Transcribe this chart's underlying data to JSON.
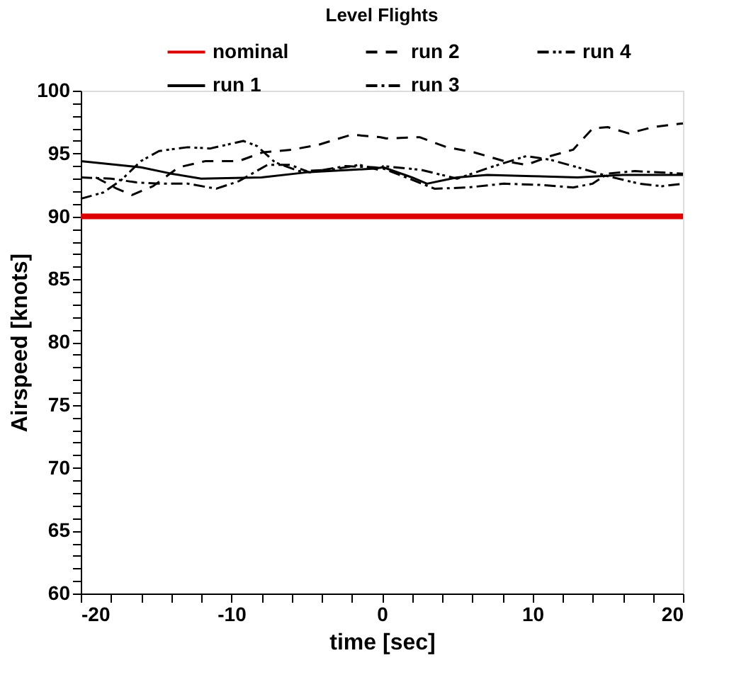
{
  "chart_data": {
    "type": "line",
    "title": "Level Flights",
    "xlabel": "time [sec]",
    "ylabel": "Airspeed [knots]",
    "xlim": [
      -20,
      20
    ],
    "ylim": [
      60,
      100
    ],
    "xticks": [
      -20,
      {
        "value": -18,
        "label": null
      },
      {
        "value": -16,
        "label": null
      },
      {
        "value": -14,
        "label": null
      },
      {
        "value": -12,
        "label": null
      },
      -10,
      {
        "value": -8,
        "label": null
      },
      {
        "value": -6,
        "label": null
      },
      {
        "value": -4,
        "label": null
      },
      {
        "value": -2,
        "label": null
      },
      0,
      {
        "value": 2,
        "label": null
      },
      {
        "value": 4,
        "label": null
      },
      {
        "value": 6,
        "label": null
      },
      {
        "value": 8,
        "label": null
      },
      10,
      {
        "value": 12,
        "label": null
      },
      {
        "value": 14,
        "label": null
      },
      {
        "value": 16,
        "label": null
      },
      {
        "value": 18,
        "label": null
      },
      20
    ],
    "yticks": [
      60,
      {
        "value": 61,
        "label": null
      },
      {
        "value": 62,
        "label": null
      },
      {
        "value": 63,
        "label": null
      },
      {
        "value": 64,
        "label": null
      },
      65,
      {
        "value": 66,
        "label": null
      },
      {
        "value": 67,
        "label": null
      },
      {
        "value": 68,
        "label": null
      },
      {
        "value": 69,
        "label": null
      },
      70,
      {
        "value": 71,
        "label": null
      },
      {
        "value": 72,
        "label": null
      },
      {
        "value": 73,
        "label": null
      },
      {
        "value": 74,
        "label": null
      },
      75,
      {
        "value": 76,
        "label": null
      },
      {
        "value": 77,
        "label": null
      },
      {
        "value": 78,
        "label": null
      },
      {
        "value": 79,
        "label": null
      },
      80,
      {
        "value": 81,
        "label": null
      },
      {
        "value": 82,
        "label": null
      },
      {
        "value": 83,
        "label": null
      },
      {
        "value": 84,
        "label": null
      },
      85,
      {
        "value": 86,
        "label": null
      },
      {
        "value": 87,
        "label": null
      },
      {
        "value": 88,
        "label": null
      },
      {
        "value": 89,
        "label": null
      },
      90,
      {
        "value": 91,
        "label": null
      },
      {
        "value": 92,
        "label": null
      },
      {
        "value": 93,
        "label": null
      },
      {
        "value": 94,
        "label": null
      },
      95,
      {
        "value": 96,
        "label": null
      },
      {
        "value": 97,
        "label": null
      },
      {
        "value": 98,
        "label": null
      },
      {
        "value": 99,
        "label": null
      },
      100
    ],
    "grid": false,
    "legend": "top",
    "marker": "none",
    "series": [
      {
        "name": "nominal",
        "color": "#dd0000",
        "line_style": "solid",
        "x": [
          -20,
          20
        ],
        "values": [
          90,
          90
        ]
      },
      {
        "name": "run 2",
        "color": "#000000",
        "line_style": "dashed",
        "x": [
          -19,
          -17.6,
          -16.6,
          -15.2,
          -13.5,
          -11.7,
          -9.5,
          -7.9,
          -6,
          -4.2,
          -2,
          -0.1,
          0.3,
          2.5,
          4.3,
          6.1,
          8.1,
          9.6,
          11.2,
          12.7,
          14,
          15,
          16.4,
          18,
          20
        ],
        "values": [
          93.1,
          92.2,
          91.7,
          92.4,
          93.9,
          94.4,
          94.4,
          95.1,
          95.3,
          95.7,
          96.5,
          96.3,
          96.2,
          96.3,
          95.5,
          95.1,
          94.4,
          94.1,
          94.8,
          95.3,
          97.0,
          97.1,
          96.6,
          97.1,
          97.4
        ]
      },
      {
        "name": "run 4",
        "color": "#000000",
        "line_style": "dashdotdot",
        "x": [
          -20,
          -18.5,
          -17.3,
          -16,
          -14.8,
          -12.9,
          -11.4,
          -9.2,
          -8.3,
          -7.1,
          -5.5,
          -3.4,
          -1.5,
          -0.2,
          0.1,
          2.6,
          5,
          7.2,
          9.6,
          11.2,
          13,
          15,
          17.1,
          18.6,
          20
        ],
        "values": [
          91.4,
          91.9,
          92.9,
          94.4,
          95.2,
          95.5,
          95.4,
          96.0,
          95.6,
          94.3,
          93.6,
          93.7,
          94.1,
          93.7,
          94.0,
          93.7,
          93.0,
          93.9,
          94.8,
          94.5,
          93.9,
          93.2,
          92.6,
          92.4,
          92.6
        ]
      },
      {
        "name": "run 1",
        "color": "#000000",
        "line_style": "solid",
        "x": [
          -20,
          -16,
          -14,
          -12,
          -8,
          -5,
          -2,
          -0.5,
          0.1,
          2,
          3,
          5,
          7,
          10,
          13,
          16,
          20
        ],
        "values": [
          94.4,
          93.9,
          93.4,
          93.0,
          93.1,
          93.5,
          93.7,
          93.8,
          93.9,
          93.1,
          92.6,
          93.1,
          93.3,
          93.2,
          93.1,
          93.3,
          93.3
        ]
      },
      {
        "name": "run 3",
        "color": "#000000",
        "line_style": "dashdot",
        "x": [
          -20,
          -18,
          -16.3,
          -14.8,
          -12.9,
          -11,
          -9.5,
          -7.6,
          -6.1,
          -4.8,
          -2.4,
          -0.5,
          0.1,
          1.6,
          3.5,
          5.7,
          8.1,
          10.6,
          12.7,
          14,
          15,
          16.8,
          20
        ],
        "values": [
          93.1,
          93.0,
          92.7,
          92.6,
          92.6,
          92.2,
          92.8,
          94.1,
          94.1,
          93.5,
          94.0,
          93.9,
          93.8,
          93.1,
          92.2,
          92.3,
          92.6,
          92.5,
          92.3,
          92.6,
          93.4,
          93.6,
          93.4
        ]
      }
    ]
  }
}
